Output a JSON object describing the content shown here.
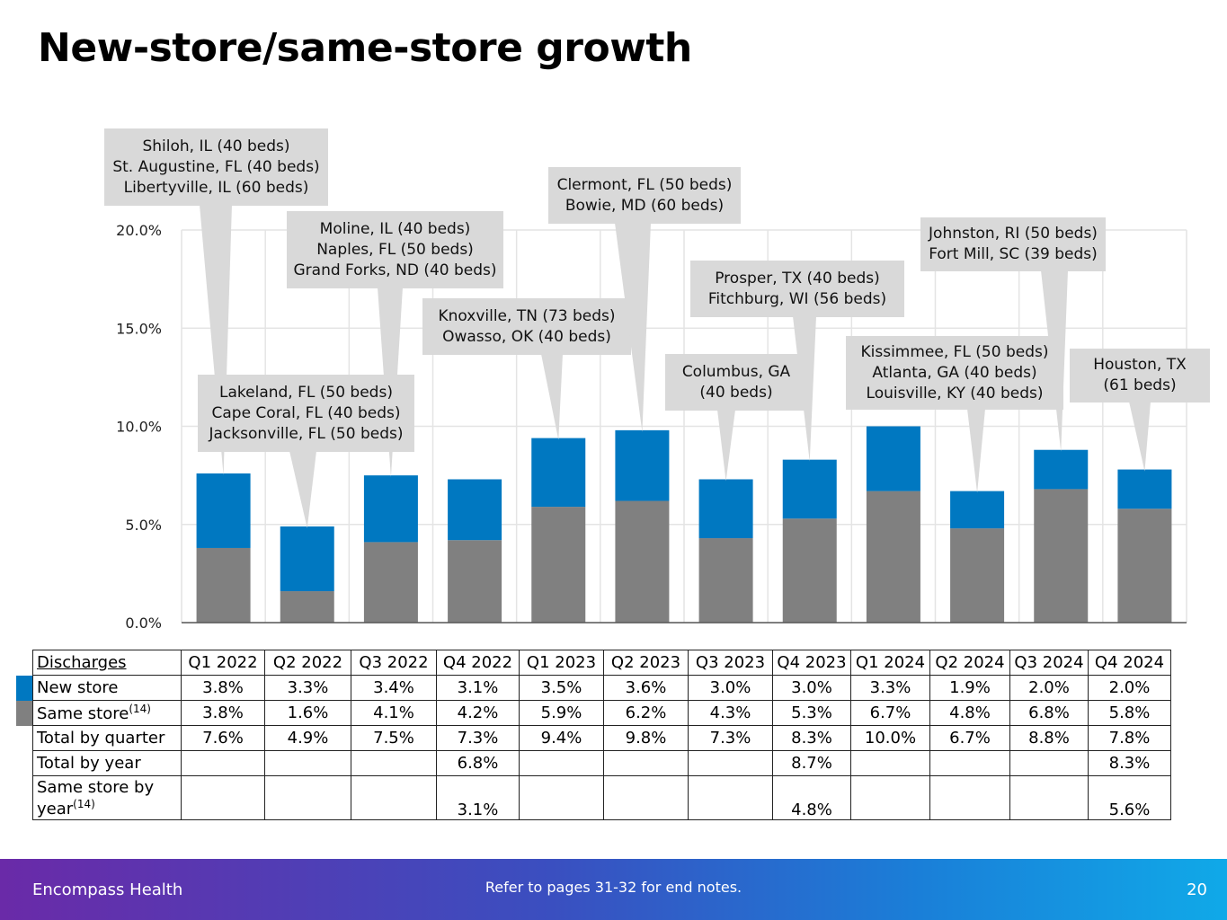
{
  "page": {
    "title": "New-store/same-store growth",
    "footer_brand": "Encompass Health",
    "footer_notes": "Refer to pages 31-32 for end notes.",
    "page_number": "20"
  },
  "colors": {
    "new_store": "#0078c1",
    "same_store": "#808080",
    "callout": "#d9d9d9",
    "grid": "#e4e4e4"
  },
  "chart_data": {
    "type": "bar",
    "stacked": true,
    "categories": [
      "Q1 2022",
      "Q2 2022",
      "Q3 2022",
      "Q4 2022",
      "Q1 2023",
      "Q2 2023",
      "Q3 2023",
      "Q4 2023",
      "Q1 2024",
      "Q2 2024",
      "Q3 2024",
      "Q4 2024"
    ],
    "series": [
      {
        "name": "Same store",
        "values": [
          3.8,
          1.6,
          4.1,
          4.2,
          5.9,
          6.2,
          4.3,
          5.3,
          6.7,
          4.8,
          6.8,
          5.8
        ]
      },
      {
        "name": "New store",
        "values": [
          3.8,
          3.3,
          3.4,
          3.1,
          3.5,
          3.6,
          3.0,
          3.0,
          3.3,
          1.9,
          2.0,
          2.0
        ]
      }
    ],
    "ylim": [
      0,
      20
    ],
    "yticks": [
      "0.0%",
      "5.0%",
      "10.0%",
      "15.0%",
      "20.0%"
    ],
    "grid": true,
    "annotations": [
      {
        "category": "Q1 2022",
        "lines": [
          "Shiloh, IL (40 beds)",
          "St. Augustine, FL (40 beds)",
          "Libertyville, IL (60 beds)"
        ]
      },
      {
        "category": "Q2 2022",
        "lines": [
          "Lakeland, FL (50 beds)",
          "Cape Coral, FL (40 beds)",
          "Jacksonville, FL (50 beds)"
        ]
      },
      {
        "category": "Q3 2022",
        "lines": [
          "Moline, IL (40 beds)",
          "Naples, FL (50 beds)",
          "Grand Forks, ND (40 beds)"
        ]
      },
      {
        "category": "Q1 2023",
        "lines": [
          "Knoxville, TN (73 beds)",
          "Owasso, OK (40 beds)"
        ]
      },
      {
        "category": "Q2 2023",
        "lines": [
          "Clermont, FL (50 beds)",
          "Bowie, MD (60 beds)"
        ]
      },
      {
        "category": "Q3 2023",
        "lines": [
          "Columbus, GA",
          "(40 beds)"
        ]
      },
      {
        "category": "Q4 2023",
        "lines": [
          "Prosper, TX (40 beds)",
          "Fitchburg, WI (56 beds)"
        ]
      },
      {
        "category": "Q2 2024",
        "lines": [
          "Kissimmee, FL (50 beds)",
          "Atlanta, GA (40 beds)",
          "Louisville, KY (40 beds)"
        ]
      },
      {
        "category": "Q3 2024",
        "lines": [
          "Johnston, RI (50 beds)",
          "Fort Mill, SC (39 beds)"
        ]
      },
      {
        "category": "Q4 2024",
        "lines": [
          "Houston, TX",
          "(61 beds)"
        ]
      }
    ]
  },
  "table": {
    "header_label": "Discharges",
    "quarters": [
      "Q1 2022",
      "Q2 2022",
      "Q3 2022",
      "Q4 2022",
      "Q1 2023",
      "Q2 2023",
      "Q3 2023",
      "Q4 2023",
      "Q1 2024",
      "Q2 2024",
      "Q3 2024",
      "Q4 2024"
    ],
    "rows": [
      {
        "label": "New store",
        "sup": "",
        "values": [
          "3.8%",
          "3.3%",
          "3.4%",
          "3.1%",
          "3.5%",
          "3.6%",
          "3.0%",
          "3.0%",
          "3.3%",
          "1.9%",
          "2.0%",
          "2.0%"
        ]
      },
      {
        "label": "Same store",
        "sup": "(14)",
        "values": [
          "3.8%",
          "1.6%",
          "4.1%",
          "4.2%",
          "5.9%",
          "6.2%",
          "4.3%",
          "5.3%",
          "6.7%",
          "4.8%",
          "6.8%",
          "5.8%"
        ]
      },
      {
        "label": "Total by quarter",
        "sup": "",
        "values": [
          "7.6%",
          "4.9%",
          "7.5%",
          "7.3%",
          "9.4%",
          "9.8%",
          "7.3%",
          "8.3%",
          "10.0%",
          "6.7%",
          "8.8%",
          "7.8%"
        ]
      },
      {
        "label": "Total by year",
        "sup": "",
        "values": [
          "",
          "",
          "",
          "6.8%",
          "",
          "",
          "",
          "8.7%",
          "",
          "",
          "",
          "8.3%"
        ]
      },
      {
        "label": "Same store by year",
        "sup": "(14)",
        "values": [
          "",
          "",
          "",
          "3.1%",
          "",
          "",
          "",
          "4.8%",
          "",
          "",
          "",
          "5.6%"
        ]
      }
    ]
  }
}
